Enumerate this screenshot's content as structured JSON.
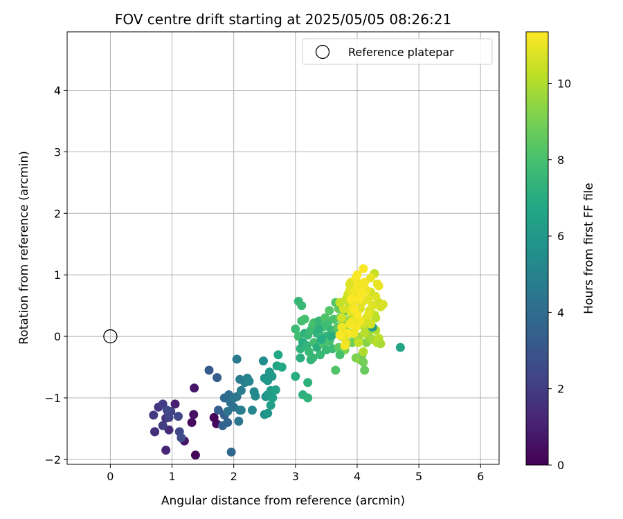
{
  "chart_data": {
    "type": "scatter",
    "title": "FOV centre drift starting at 2025/05/05 08:26:21",
    "xlabel": "Angular distance from reference (arcmin)",
    "ylabel": "Rotation from reference (arcmin)",
    "xlim": [
      -0.7,
      6.3
    ],
    "ylim": [
      -2.08,
      4.95
    ],
    "xticks": [
      0,
      1,
      2,
      3,
      4,
      5,
      6
    ],
    "yticks": [
      -2,
      -1,
      0,
      1,
      2,
      3,
      4
    ],
    "grid": true,
    "legend": {
      "position": "top-right",
      "entries": [
        "Reference platepar"
      ]
    },
    "reference_point": {
      "x": 0,
      "y": 0,
      "label": "Reference platepar"
    },
    "colorbar": {
      "label": "Hours from first FF file",
      "min": 0,
      "max": 11.35,
      "ticks": [
        0,
        2,
        4,
        6,
        8,
        10
      ],
      "colormap": "viridis"
    },
    "points": [
      [
        1.38,
        -1.93,
        0.1
      ],
      [
        1.32,
        -1.4,
        0.4
      ],
      [
        1.2,
        -1.7,
        0.6
      ],
      [
        1.72,
        -1.42,
        0.3
      ],
      [
        1.68,
        -1.32,
        0.2
      ],
      [
        1.35,
        -1.27,
        0.5
      ],
      [
        1.36,
        -0.84,
        0.7
      ],
      [
        1.05,
        -1.1,
        1.0
      ],
      [
        0.9,
        -1.85,
        1.2
      ],
      [
        0.95,
        -1.52,
        1.4
      ],
      [
        0.9,
        -1.33,
        1.6
      ],
      [
        0.72,
        -1.55,
        1.8
      ],
      [
        0.7,
        -1.28,
        1.9
      ],
      [
        0.78,
        -1.15,
        1.7
      ],
      [
        0.85,
        -1.1,
        2.0
      ],
      [
        0.85,
        -1.45,
        2.1
      ],
      [
        0.98,
        -1.22,
        2.2
      ],
      [
        0.95,
        -1.32,
        2.3
      ],
      [
        1.1,
        -1.3,
        2.4
      ],
      [
        1.12,
        -1.55,
        2.5
      ],
      [
        1.15,
        -1.65,
        2.6
      ],
      [
        0.92,
        -1.2,
        2.5
      ],
      [
        0.72,
        -1.55,
        1.5
      ],
      [
        1.6,
        -0.55,
        3.2
      ],
      [
        1.73,
        -0.67,
        3.3
      ],
      [
        1.75,
        -1.2,
        3.4
      ],
      [
        1.85,
        -1.28,
        3.5
      ],
      [
        1.82,
        -1.45,
        3.6
      ],
      [
        1.9,
        -1.4,
        3.7
      ],
      [
        1.96,
        -1.88,
        3.8
      ],
      [
        1.85,
        -1.0,
        3.9
      ],
      [
        1.92,
        -0.95,
        4.0
      ],
      [
        1.95,
        -1.08,
        4.1
      ],
      [
        2.0,
        -1.15,
        4.2
      ],
      [
        1.9,
        -1.22,
        4.3
      ],
      [
        2.0,
        -1.0,
        4.4
      ],
      [
        2.05,
        -0.98,
        4.5
      ],
      [
        2.05,
        -0.37,
        4.6
      ],
      [
        2.1,
        -0.7,
        4.7
      ],
      [
        2.12,
        -0.88,
        4.8
      ],
      [
        2.18,
        -0.75,
        4.9
      ],
      [
        2.22,
        -0.68,
        5.0
      ],
      [
        2.25,
        -0.73,
        5.1
      ],
      [
        2.1,
        -1.2,
        4.6
      ],
      [
        2.08,
        -1.38,
        4.4
      ],
      [
        2.12,
        -1.2,
        4.8
      ],
      [
        2.3,
        -1.2,
        5.2
      ],
      [
        2.33,
        -0.9,
        5.3
      ],
      [
        2.35,
        -0.97,
        5.4
      ],
      [
        2.48,
        -0.4,
        5.5
      ],
      [
        2.5,
        -1.27,
        5.6
      ],
      [
        2.52,
        -0.98,
        5.7
      ],
      [
        2.5,
        -0.68,
        5.8
      ],
      [
        2.55,
        -0.72,
        5.9
      ],
      [
        2.55,
        -0.95,
        6.0
      ],
      [
        2.58,
        -0.58,
        6.1
      ],
      [
        2.6,
        -0.88,
        6.2
      ],
      [
        2.6,
        -1.12,
        6.3
      ],
      [
        2.63,
        -1.0,
        6.4
      ],
      [
        2.68,
        -0.87,
        6.5
      ],
      [
        2.7,
        -0.48,
        6.6
      ],
      [
        2.72,
        -0.3,
        6.7
      ],
      [
        2.78,
        -0.5,
        6.8
      ],
      [
        2.55,
        -1.25,
        5.9
      ],
      [
        2.62,
        -0.65,
        6.0
      ],
      [
        3.0,
        -0.65,
        7.0
      ],
      [
        3.08,
        -0.35,
        7.1
      ],
      [
        3.12,
        -0.95,
        7.2
      ],
      [
        3.2,
        -1.0,
        7.3
      ],
      [
        3.2,
        -0.75,
        7.2
      ],
      [
        3.25,
        -0.38,
        7.4
      ],
      [
        3.05,
        0.57,
        7.5
      ],
      [
        3.1,
        0.5,
        7.6
      ],
      [
        3.0,
        0.12,
        7.7
      ],
      [
        3.05,
        0.0,
        7.8
      ],
      [
        3.1,
        0.25,
        7.9
      ],
      [
        3.15,
        0.28,
        8.0
      ],
      [
        3.08,
        -0.2,
        7.3
      ],
      [
        3.12,
        -0.1,
        7.0
      ],
      [
        3.15,
        0.05,
        7.2
      ],
      [
        3.18,
        -0.15,
        7.4
      ],
      [
        3.2,
        0.02,
        7.5
      ],
      [
        3.22,
        -0.25,
        7.6
      ],
      [
        3.25,
        0.1,
        7.7
      ],
      [
        3.28,
        0.18,
        7.8
      ],
      [
        3.3,
        -0.1,
        7.9
      ],
      [
        3.3,
        0.22,
        8.0
      ],
      [
        3.35,
        -0.18,
        7.1
      ],
      [
        3.35,
        0.05,
        7.3
      ],
      [
        3.38,
        0.25,
        7.5
      ],
      [
        3.4,
        -0.3,
        7.6
      ],
      [
        3.42,
        0.0,
        7.7
      ],
      [
        3.45,
        0.15,
        7.9
      ],
      [
        3.45,
        -0.12,
        8.1
      ],
      [
        3.48,
        0.3,
        8.2
      ],
      [
        3.5,
        0.0,
        7.4
      ],
      [
        3.5,
        -0.22,
        7.6
      ],
      [
        3.52,
        0.2,
        7.8
      ],
      [
        3.55,
        -0.08,
        8.0
      ],
      [
        3.55,
        0.42,
        8.3
      ],
      [
        3.58,
        0.1,
        7.5
      ],
      [
        3.6,
        -0.2,
        7.7
      ],
      [
        3.62,
        0.05,
        7.9
      ],
      [
        3.62,
        0.28,
        8.1
      ],
      [
        3.65,
        -0.55,
        8.2
      ],
      [
        3.65,
        0.55,
        8.3
      ],
      [
        3.68,
        0.15,
        8.4
      ],
      [
        3.7,
        -0.18,
        8.5
      ],
      [
        3.7,
        0.45,
        8.6
      ],
      [
        3.72,
        0.3,
        8.7
      ],
      [
        3.75,
        0.0,
        8.8
      ],
      [
        3.78,
        0.2,
        8.9
      ],
      [
        3.8,
        0.4,
        9.0
      ],
      [
        3.8,
        -0.22,
        9.1
      ],
      [
        3.82,
        0.1,
        9.2
      ],
      [
        3.85,
        0.25,
        9.3
      ],
      [
        3.85,
        -0.1,
        9.4
      ],
      [
        3.88,
        0.48,
        9.5
      ],
      [
        3.9,
        0.05,
        9.6
      ],
      [
        3.92,
        0.3,
        9.7
      ],
      [
        3.38,
        0.12,
        7.2
      ],
      [
        3.42,
        -0.05,
        7.0
      ],
      [
        3.28,
        -0.35,
        7.5
      ],
      [
        3.58,
        0.0,
        7.1
      ],
      [
        3.72,
        -0.3,
        8.0
      ],
      [
        3.92,
        -0.1,
        8.8
      ],
      [
        3.95,
        0.35,
        9.0
      ],
      [
        3.95,
        0.6,
        9.2
      ],
      [
        3.98,
        -0.35,
        9.1
      ],
      [
        4.0,
        0.0,
        9.3
      ],
      [
        4.0,
        0.2,
        9.5
      ],
      [
        4.02,
        -0.05,
        9.7
      ],
      [
        4.05,
        -0.38,
        9.4
      ],
      [
        4.08,
        -0.3,
        9.0
      ],
      [
        4.1,
        -0.42,
        8.9
      ],
      [
        4.12,
        -0.55,
        8.7
      ],
      [
        4.15,
        -0.1,
        9.3
      ],
      [
        4.18,
        0.05,
        9.5
      ],
      [
        4.2,
        -0.02,
        9.6
      ],
      [
        4.25,
        -0.05,
        9.8
      ],
      [
        4.3,
        0.1,
        10.0
      ],
      [
        4.32,
        -0.1,
        10.1
      ],
      [
        4.35,
        -0.03,
        10.2
      ],
      [
        4.38,
        -0.12,
        9.9
      ],
      [
        4.12,
        0.15,
        9.9
      ],
      [
        4.28,
        0.35,
        10.3
      ],
      [
        4.35,
        0.55,
        10.5
      ],
      [
        4.38,
        0.48,
        10.6
      ],
      [
        4.42,
        0.52,
        10.7
      ],
      [
        4.3,
        0.65,
        10.8
      ],
      [
        4.33,
        0.85,
        10.9
      ],
      [
        4.35,
        0.82,
        11.0
      ],
      [
        4.28,
        1.02,
        10.4
      ],
      [
        4.22,
        0.72,
        10.6
      ],
      [
        4.25,
        0.15,
        6.3
      ],
      [
        4.3,
        0.3,
        10.2
      ],
      [
        4.7,
        -0.18,
        6.6
      ],
      [
        3.82,
        0.6,
        10.4
      ],
      [
        3.85,
        0.68,
        10.6
      ],
      [
        3.88,
        0.75,
        10.8
      ],
      [
        3.9,
        0.88,
        11.0
      ],
      [
        3.92,
        0.5,
        10.9
      ],
      [
        3.95,
        0.72,
        11.1
      ],
      [
        3.98,
        0.95,
        11.2
      ],
      [
        4.0,
        1.0,
        11.3
      ],
      [
        4.02,
        0.65,
        11.0
      ],
      [
        4.05,
        0.85,
        11.1
      ],
      [
        4.05,
        0.45,
        10.8
      ],
      [
        4.08,
        0.55,
        10.9
      ],
      [
        4.1,
        1.1,
        11.3
      ],
      [
        4.12,
        0.88,
        11.2
      ],
      [
        4.15,
        0.75,
        11.1
      ],
      [
        4.18,
        0.6,
        10.9
      ],
      [
        4.2,
        0.42,
        10.7
      ],
      [
        4.22,
        0.95,
        11.0
      ],
      [
        4.25,
        0.5,
        10.8
      ],
      [
        4.15,
        0.3,
        10.6
      ],
      [
        4.1,
        0.2,
        10.5
      ],
      [
        4.05,
        0.25,
        11.2
      ],
      [
        4.0,
        0.35,
        11.3
      ],
      [
        3.98,
        0.15,
        11.2
      ],
      [
        3.95,
        0.05,
        11.1
      ],
      [
        3.92,
        0.25,
        11.0
      ],
      [
        3.9,
        0.4,
        10.9
      ],
      [
        3.88,
        0.2,
        11.2
      ],
      [
        3.85,
        0.05,
        11.3
      ],
      [
        3.82,
        -0.1,
        10.8
      ],
      [
        3.78,
        0.45,
        10.7
      ],
      [
        3.75,
        0.3,
        10.5
      ],
      [
        3.72,
        0.55,
        10.4
      ],
      [
        3.88,
        0.85,
        10.8
      ],
      [
        3.95,
        0.45,
        11.3
      ],
      [
        4.02,
        0.6,
        11.3
      ],
      [
        4.08,
        0.7,
        11.3
      ],
      [
        3.78,
        0.0,
        11.0
      ],
      [
        3.8,
        -0.15,
        11.2
      ],
      [
        4.02,
        -0.1,
        10.3
      ],
      [
        4.12,
        0.05,
        10.1
      ],
      [
        4.1,
        -0.25,
        10.0
      ],
      [
        3.75,
        0.15,
        11.1
      ],
      [
        3.72,
        0.02,
        11.3
      ],
      [
        4.0,
        0.8,
        11.2
      ],
      [
        4.18,
        0.35,
        10.9
      ],
      [
        4.22,
        0.2,
        10.6
      ],
      [
        3.9,
        0.6,
        11.3
      ]
    ]
  }
}
